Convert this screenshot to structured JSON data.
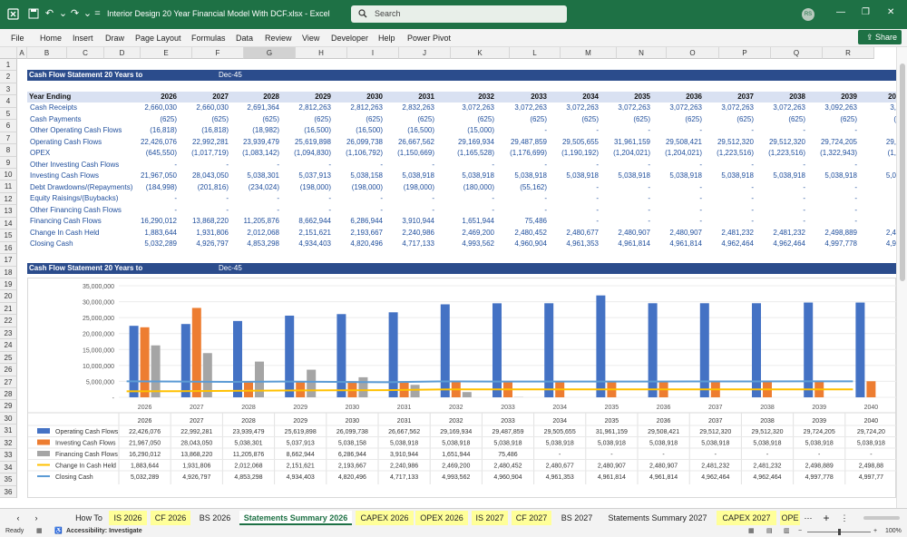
{
  "titlebar": {
    "doc_title": "Interior Design 20 Year Financial Model With DCF.xlsx  -  Excel",
    "search_placeholder": "Search",
    "avatar": "RS"
  },
  "menu": [
    "File",
    "Home",
    "Insert",
    "Draw",
    "Page Layout",
    "Formulas",
    "Data",
    "Review",
    "View",
    "Developer",
    "Help",
    "Power Pivot"
  ],
  "share_label": "Share",
  "columns": [
    "A",
    "B",
    "C",
    "D",
    "E",
    "F",
    "G",
    "H",
    "I",
    "J",
    "K",
    "L",
    "M",
    "N",
    "O",
    "P",
    "Q",
    "R"
  ],
  "rows": [
    "1",
    "2",
    "3",
    "4",
    "5",
    "6",
    "7",
    "8",
    "9",
    "10",
    "11",
    "12",
    "13",
    "14",
    "15",
    "16",
    "17",
    "18",
    "19",
    "20",
    "21",
    "22",
    "23",
    "24",
    "25",
    "26",
    "27",
    "28",
    "29",
    "30",
    "31",
    "32",
    "33",
    "34",
    "35",
    "36"
  ],
  "section1": {
    "title": "Cash Flow Statement 20 Years to",
    "date": "Dec-45"
  },
  "section2": {
    "title": "Cash Flow Statement 20 Years to",
    "date": "Dec-45"
  },
  "year_header": "Year Ending",
  "years": [
    "2026",
    "2027",
    "2028",
    "2029",
    "2030",
    "2031",
    "2032",
    "2033",
    "2034",
    "2035",
    "2036",
    "2037",
    "2038",
    "2039",
    "20"
  ],
  "table": [
    {
      "label": "Cash Receipts",
      "values": [
        "2,660,030",
        "2,660,030",
        "2,691,364",
        "2,812,263",
        "2,812,263",
        "2,832,263",
        "3,072,263",
        "3,072,263",
        "3,072,263",
        "3,072,263",
        "3,072,263",
        "3,072,263",
        "3,072,263",
        "3,092,263",
        "3,"
      ]
    },
    {
      "label": "Cash Payments",
      "values": [
        "(625)",
        "(625)",
        "(625)",
        "(625)",
        "(625)",
        "(625)",
        "(625)",
        "(625)",
        "(625)",
        "(625)",
        "(625)",
        "(625)",
        "(625)",
        "(625)",
        "("
      ]
    },
    {
      "label": "Other Operating Cash Flows",
      "values": [
        "(16,818)",
        "(16,818)",
        "(18,982)",
        "(16,500)",
        "(16,500)",
        "(16,500)",
        "(15,000)",
        "-",
        "-",
        "-",
        "-",
        "-",
        "-",
        "-",
        ""
      ]
    },
    {
      "label": "Operating Cash Flows",
      "values": [
        "22,426,076",
        "22,992,281",
        "23,939,479",
        "25,619,898",
        "26,099,738",
        "26,667,562",
        "29,169,934",
        "29,487,859",
        "29,505,655",
        "31,961,159",
        "29,508,421",
        "29,512,320",
        "29,512,320",
        "29,724,205",
        "29,"
      ]
    },
    {
      "label": "OPEX",
      "values": [
        "(645,550)",
        "(1,017,719)",
        "(1,083,142)",
        "(1,094,830)",
        "(1,106,792)",
        "(1,150,669)",
        "(1,165,528)",
        "(1,176,699)",
        "(1,190,192)",
        "(1,204,021)",
        "(1,204,021)",
        "(1,223,516)",
        "(1,223,516)",
        "(1,322,943)",
        "(1,"
      ]
    },
    {
      "label": "Other Investing Cash Flows",
      "values": [
        "-",
        "-",
        "-",
        "-",
        "-",
        "-",
        "-",
        "-",
        "-",
        "-",
        "-",
        "-",
        "-",
        "-",
        ""
      ]
    },
    {
      "label": "Investing Cash Flows",
      "values": [
        "21,967,050",
        "28,043,050",
        "5,038,301",
        "5,037,913",
        "5,038,158",
        "5,038,918",
        "5,038,918",
        "5,038,918",
        "5,038,918",
        "5,038,918",
        "5,038,918",
        "5,038,918",
        "5,038,918",
        "5,038,918",
        "5,0"
      ]
    },
    {
      "label": "Debt Drawdowns/(Repayments)",
      "values": [
        "(184,998)",
        "(201,816)",
        "(234,024)",
        "(198,000)",
        "(198,000)",
        "(198,000)",
        "(180,000)",
        "(55,162)",
        "-",
        "-",
        "-",
        "-",
        "-",
        "-",
        ""
      ]
    },
    {
      "label": "Equity Raisings/(Buybacks)",
      "values": [
        "-",
        "-",
        "-",
        "-",
        "-",
        "-",
        "-",
        "-",
        "-",
        "-",
        "-",
        "-",
        "-",
        "-",
        ""
      ]
    },
    {
      "label": "Other Financing Cash Flows",
      "values": [
        "-",
        "-",
        "-",
        "-",
        "-",
        "-",
        "-",
        "-",
        "-",
        "-",
        "-",
        "-",
        "-",
        "-",
        ""
      ]
    },
    {
      "label": "Financing Cash Flows",
      "values": [
        "16,290,012",
        "13,868,220",
        "11,205,876",
        "8,662,944",
        "6,286,944",
        "3,910,944",
        "1,651,944",
        "75,486",
        "-",
        "-",
        "-",
        "-",
        "-",
        "-",
        ""
      ]
    },
    {
      "label": "Change In Cash Held",
      "values": [
        "1,883,644",
        "1,931,806",
        "2,012,068",
        "2,151,621",
        "2,193,667",
        "2,240,986",
        "2,469,200",
        "2,480,452",
        "2,480,677",
        "2,480,907",
        "2,480,907",
        "2,481,232",
        "2,481,232",
        "2,498,889",
        "2,4"
      ]
    },
    {
      "label": "Closing Cash",
      "values": [
        "5,032,289",
        "4,926,797",
        "4,853,298",
        "4,934,403",
        "4,820,496",
        "4,717,133",
        "4,993,562",
        "4,960,904",
        "4,961,353",
        "4,961,814",
        "4,961,814",
        "4,962,464",
        "4,962,464",
        "4,997,778",
        "4,9"
      ]
    }
  ],
  "chart_data": {
    "type": "bar",
    "categories": [
      "2026",
      "2027",
      "2028",
      "2029",
      "2030",
      "2031",
      "2032",
      "2033",
      "2034",
      "2035",
      "2036",
      "2037",
      "2038",
      "2039",
      "2040"
    ],
    "ylim": [
      0,
      35000000
    ],
    "yticks": [
      "-",
      "5,000,000",
      "10,000,000",
      "15,000,000",
      "20,000,000",
      "25,000,000",
      "30,000,000",
      "35,000,000"
    ],
    "series": [
      {
        "name": "Operating Cash Flows",
        "kind": "bar",
        "color": "#4472c4",
        "values": [
          22426076,
          22992281,
          23939479,
          25619898,
          26099738,
          26667562,
          29169934,
          29487859,
          29505655,
          31961159,
          29508421,
          29512320,
          29512320,
          29724205,
          29724205
        ],
        "labels": [
          "22,426,076",
          "22,992,281",
          "23,939,479",
          "25,619,898",
          "26,099,738",
          "26,667,562",
          "29,169,934",
          "29,487,859",
          "29,505,655",
          "31,961,159",
          "29,508,421",
          "29,512,320",
          "29,512,320",
          "29,724,205",
          "29,724,20"
        ]
      },
      {
        "name": "Investing Cash Flows",
        "kind": "bar",
        "color": "#ed7d31",
        "values": [
          21967050,
          28043050,
          5038301,
          5037913,
          5038158,
          5038918,
          5038918,
          5038918,
          5038918,
          5038918,
          5038918,
          5038918,
          5038918,
          5038918,
          5038918
        ],
        "labels": [
          "21,967,050",
          "28,043,050",
          "5,038,301",
          "5,037,913",
          "5,038,158",
          "5,038,918",
          "5,038,918",
          "5,038,918",
          "5,038,918",
          "5,038,918",
          "5,038,918",
          "5,038,918",
          "5,038,918",
          "5,038,918",
          "5,038,918"
        ]
      },
      {
        "name": "Financing Cash Flows",
        "kind": "bar",
        "color": "#a5a5a5",
        "values": [
          16290012,
          13868220,
          11205876,
          8662944,
          6286944,
          3910944,
          1651944,
          75486,
          0,
          0,
          0,
          0,
          0,
          0,
          0
        ],
        "labels": [
          "16,290,012",
          "13,868,220",
          "11,205,876",
          "8,662,944",
          "6,286,944",
          "3,910,944",
          "1,651,944",
          "75,486",
          "-",
          "-",
          "-",
          "-",
          "-",
          "-",
          "-"
        ]
      },
      {
        "name": "Change In Cash Held",
        "kind": "line",
        "color": "#ffc000",
        "values": [
          1883644,
          1931806,
          2012068,
          2151621,
          2193667,
          2240986,
          2469200,
          2480452,
          2480677,
          2480907,
          2480907,
          2481232,
          2481232,
          2498889,
          2498889
        ],
        "labels": [
          "1,883,644",
          "1,931,806",
          "2,012,068",
          "2,151,621",
          "2,193,667",
          "2,240,986",
          "2,469,200",
          "2,480,452",
          "2,480,677",
          "2,480,907",
          "2,480,907",
          "2,481,232",
          "2,481,232",
          "2,498,889",
          "2,498,88"
        ]
      },
      {
        "name": "Closing Cash",
        "kind": "line",
        "color": "#5b9bd5",
        "values": [
          5032289,
          4926797,
          4853298,
          4934403,
          4820496,
          4717133,
          4993562,
          4960904,
          4961353,
          4961814,
          4961814,
          4962464,
          4962464,
          4997778,
          4997778
        ],
        "labels": [
          "5,032,289",
          "4,926,797",
          "4,853,298",
          "4,934,403",
          "4,820,496",
          "4,717,133",
          "4,993,562",
          "4,960,904",
          "4,961,353",
          "4,961,814",
          "4,961,814",
          "4,962,464",
          "4,962,464",
          "4,997,778",
          "4,997,77"
        ]
      }
    ]
  },
  "tabs": [
    {
      "label": "How To",
      "style": "plain"
    },
    {
      "label": "IS 2026",
      "style": "y"
    },
    {
      "label": "CF 2026",
      "style": "y"
    },
    {
      "label": "BS 2026",
      "style": "plain"
    },
    {
      "label": "Statements Summary 2026",
      "style": "active"
    },
    {
      "label": "CAPEX 2026",
      "style": "y"
    },
    {
      "label": "OPEX 2026",
      "style": "y"
    },
    {
      "label": "IS 2027",
      "style": "y"
    },
    {
      "label": "CF 2027",
      "style": "y"
    },
    {
      "label": "BS 2027",
      "style": "plain"
    },
    {
      "label": "Statements Summary 2027",
      "style": "plain"
    },
    {
      "label": "CAPEX 2027",
      "style": "y"
    },
    {
      "label": "OPE",
      "style": "y"
    }
  ],
  "status": {
    "ready": "Ready",
    "accessibility": "Accessibility: Investigate",
    "zoom": "100%"
  }
}
